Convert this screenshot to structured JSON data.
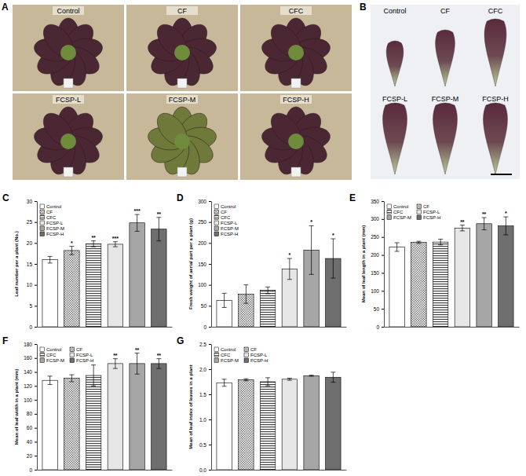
{
  "photo_panels": [
    {
      "letter": "A",
      "labels": [
        "Control",
        "CF",
        "CFC",
        "FCSP-L",
        "FCSP-M",
        "FCSP-H"
      ]
    },
    {
      "letter": "B",
      "labels": [
        "Control",
        "CF",
        "CFC",
        "FCSP-L",
        "FCSP-M",
        "FCSP-H"
      ]
    }
  ],
  "chart_data": [
    {
      "type": "bar",
      "panel": "C",
      "ylabel": "Leaf number per a plant (No.)",
      "categories": [
        "Control",
        "CF",
        "CFC",
        "FCSP-L",
        "FCSP-M",
        "FCSP-H"
      ],
      "values": [
        16,
        18.2,
        19.8,
        19.7,
        24.8,
        23.3
      ],
      "errors": [
        0.8,
        1,
        0.7,
        0.6,
        2,
        2.8
      ],
      "annotations": [
        null,
        "*",
        "**",
        "***",
        "***",
        "**"
      ],
      "colors": [
        "#ffffff",
        "#ffffff",
        "#ffffff",
        "#e6e6e6",
        "#a6a6a6",
        "#6e6e6e"
      ],
      "ylim": [
        0,
        30
      ],
      "yticks": [
        0,
        5,
        10,
        15,
        20,
        25,
        30
      ],
      "legend": "top-left",
      "tick_labels": "y"
    },
    {
      "type": "bar",
      "panel": "D",
      "ylabel": "Fresh weight of aerial part per a plant (g)",
      "categories": [
        "Control",
        "CF",
        "CFC",
        "FCSP-L",
        "FCSP-M",
        "FCSP-H"
      ],
      "values": [
        63,
        78,
        87,
        138,
        183,
        163
      ],
      "errors": [
        17,
        22,
        8,
        25,
        58,
        47
      ],
      "annotations": [
        null,
        null,
        null,
        "*",
        "*",
        "*"
      ],
      "colors": [
        "#ffffff",
        "#ffffff",
        "#ffffff",
        "#e6e6e6",
        "#a6a6a6",
        "#6e6e6e"
      ],
      "ylim": [
        0,
        300
      ],
      "yticks": [
        0,
        50,
        100,
        150,
        200,
        250,
        300
      ],
      "legend": "top-left",
      "tick_labels": "y"
    },
    {
      "type": "bar",
      "panel": "E",
      "ylabel": "Mean of leaf length in a plant (mm)",
      "categories": [
        "Control",
        "CF",
        "CFC",
        "FCSP-L",
        "FCSP-M",
        "FCSP-H"
      ],
      "values": [
        222,
        235,
        236,
        275,
        287,
        281
      ],
      "errors": [
        12,
        3,
        8,
        8,
        17,
        25
      ],
      "annotations": [
        null,
        null,
        null,
        "**",
        "**",
        "*"
      ],
      "colors": [
        "#ffffff",
        "#ffffff",
        "#ffffff",
        "#e6e6e6",
        "#a6a6a6",
        "#6e6e6e"
      ],
      "ylim": [
        0,
        350
      ],
      "yticks": [
        0,
        50,
        100,
        150,
        200,
        250,
        300,
        350
      ],
      "legend": "top-left",
      "tick_labels": "y"
    },
    {
      "type": "bar",
      "panel": "F",
      "ylabel": "Mean of leaf width in a plant (mm)",
      "categories": [
        "Control",
        "CF",
        "CFC",
        "FCSP-L",
        "FCSP-M",
        "FCSP-H"
      ],
      "values": [
        128,
        131,
        135,
        152,
        152,
        152
      ],
      "errors": [
        6,
        5,
        15,
        7,
        15,
        7
      ],
      "annotations": [
        null,
        null,
        null,
        "**",
        "**",
        "**"
      ],
      "colors": [
        "#ffffff",
        "#ffffff",
        "#ffffff",
        "#e6e6e6",
        "#a6a6a6",
        "#6e6e6e"
      ],
      "ylim": [
        0,
        180
      ],
      "yticks": [
        0,
        20,
        40,
        60,
        80,
        100,
        120,
        140,
        160,
        180
      ],
      "legend": "top-left",
      "tick_labels": "y"
    },
    {
      "type": "bar",
      "panel": "G",
      "ylabel": "Mean of leaf index of leaves in a plant",
      "categories": [
        "Control",
        "CF",
        "CFC",
        "FCSP-L",
        "FCSP-M",
        "FCSP-H"
      ],
      "values": [
        1.73,
        1.79,
        1.75,
        1.8,
        1.87,
        1.84
      ],
      "errors": [
        0.07,
        0.02,
        0.08,
        0.02,
        0.01,
        0.1
      ],
      "colors": [
        "#ffffff",
        "#ffffff",
        "#ffffff",
        "#e6e6e6",
        "#a6a6a6",
        "#6e6e6e"
      ],
      "ylim": [
        0,
        2.5
      ],
      "yticks": [
        {
          "value": 0,
          "label": "0.0"
        },
        {
          "value": 0.5,
          "label": "0.5"
        },
        {
          "value": 1,
          "label": "1.0"
        },
        {
          "value": 1.5,
          "label": "1.5"
        },
        {
          "value": 2,
          "label": "2.0"
        },
        {
          "value": 2.5,
          "label": "2.5"
        }
      ],
      "legend": "top-left",
      "tick_labels": "y"
    }
  ]
}
